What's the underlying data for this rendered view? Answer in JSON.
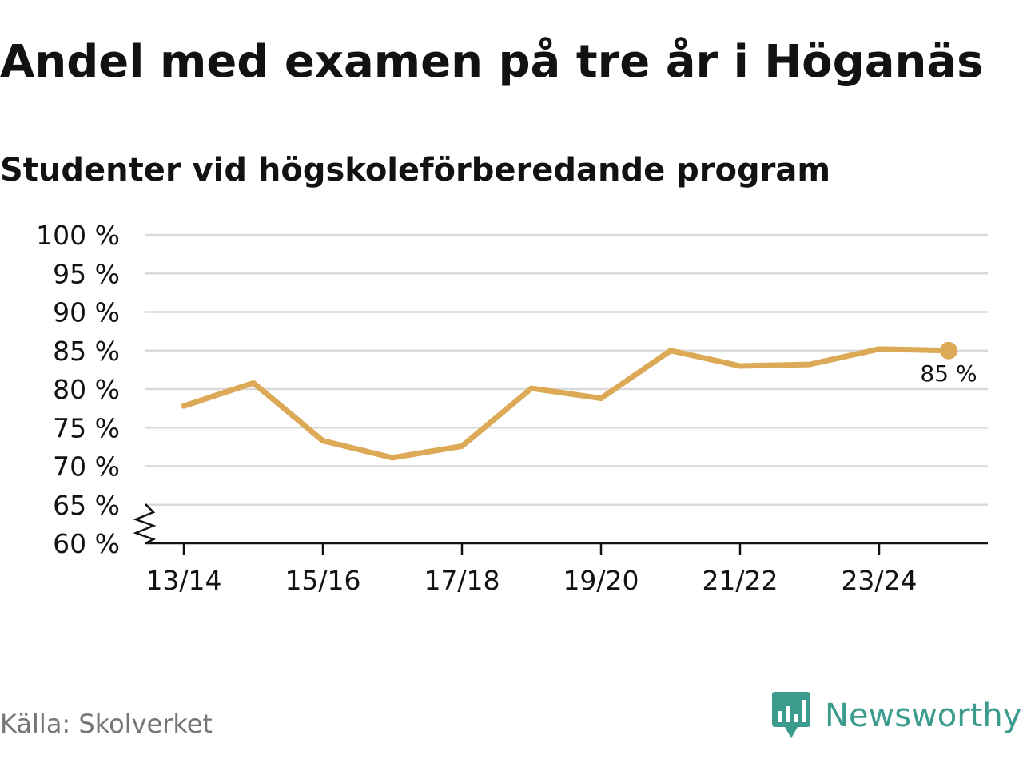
{
  "header": {
    "title": "Andel med examen på tre år i Höganäs",
    "subtitle": "Studenter vid högskoleförberedande program"
  },
  "chart_data": {
    "type": "line",
    "title": "Andel med examen på tre år i Höganäs",
    "subtitle": "Studenter vid högskoleförberedande program",
    "xlabel": "",
    "ylabel": "",
    "x": [
      "13/14",
      "14/15",
      "15/16",
      "16/17",
      "17/18",
      "18/19",
      "19/20",
      "20/21",
      "21/22",
      "22/23",
      "23/24",
      "24/25"
    ],
    "x_tick_labels": [
      "13/14",
      "15/16",
      "17/18",
      "19/20",
      "21/22",
      "23/24"
    ],
    "y_tick_labels": [
      "60 %",
      "65 %",
      "70 %",
      "75 %",
      "80 %",
      "85 %",
      "90 %",
      "95 %",
      "100 %"
    ],
    "ylim": [
      60,
      100
    ],
    "y_axis_break": true,
    "grid": true,
    "series": [
      {
        "values": [
          77.8,
          80.8,
          73.3,
          71.1,
          72.6,
          80.1,
          78.8,
          85.0,
          83.0,
          83.2,
          85.2,
          85.0
        ],
        "color": "#dcaa57"
      }
    ],
    "annotations": [
      {
        "label": "85 %",
        "point_index": 11
      }
    ]
  },
  "footer": {
    "source": "Källa: Skolverket",
    "brand": "Newsworthy",
    "brand_icon": "newsworthy-logo-icon",
    "brand_color": "#3b9b8d"
  },
  "colors": {
    "line": "#dcaa57",
    "grid": "#d9d9d9",
    "axis": "#121212",
    "text": "#121212",
    "muted": "#757575",
    "brand": "#3b9b8d"
  }
}
